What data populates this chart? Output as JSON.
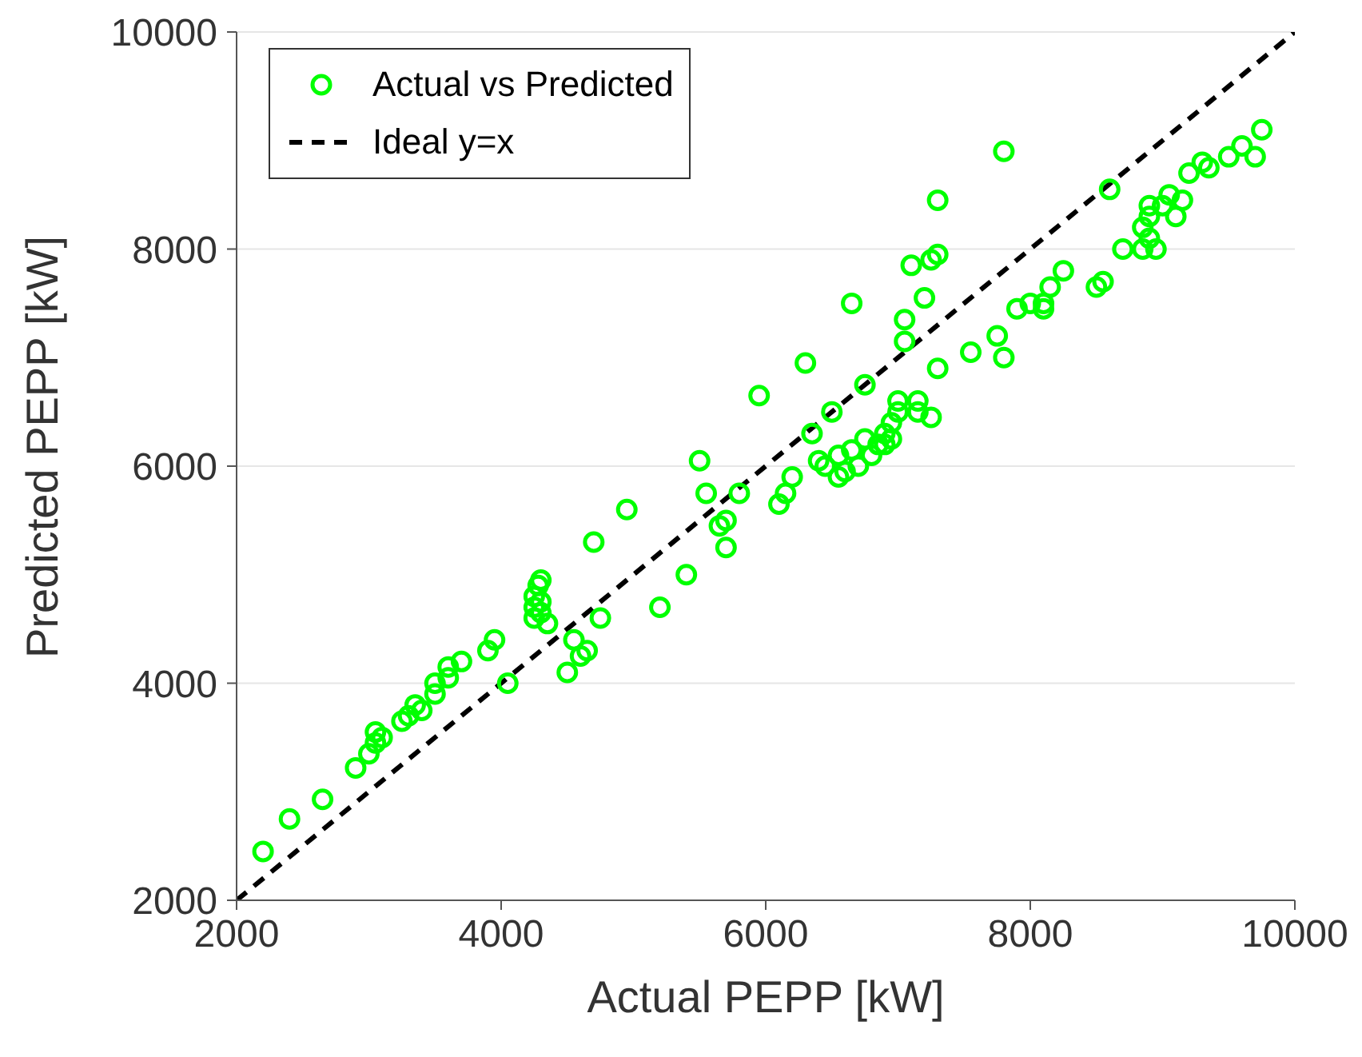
{
  "chart_data": {
    "type": "scatter",
    "xlabel": "Actual PEPP [kW]",
    "ylabel": "Predicted PEPP [kW]",
    "xlim": [
      2000,
      10000
    ],
    "ylim": [
      2000,
      10000
    ],
    "xticks": [
      2000,
      4000,
      6000,
      8000,
      10000
    ],
    "yticks": [
      2000,
      4000,
      6000,
      8000,
      10000
    ],
    "grid": "y",
    "legend": "top left",
    "series": [
      {
        "name": "Actual vs Predicted",
        "type": "scatter",
        "color": "#00ff00",
        "marker": "circle",
        "x": [
          2200,
          2400,
          2650,
          2900,
          3000,
          3050,
          3050,
          3100,
          3250,
          3300,
          3350,
          3400,
          3500,
          3500,
          3600,
          3600,
          3700,
          3900,
          3950,
          4050,
          4250,
          4250,
          4250,
          4280,
          4300,
          4300,
          4350,
          4300,
          4500,
          4550,
          4600,
          4650,
          4700,
          4750,
          4950,
          5200,
          5400,
          5500,
          5550,
          5650,
          5700,
          5700,
          5800,
          5950,
          6100,
          6150,
          6200,
          6300,
          6350,
          6400,
          6450,
          6500,
          6550,
          6550,
          6600,
          6650,
          6650,
          6700,
          6750,
          6750,
          6800,
          6850,
          6900,
          6950,
          7000,
          7000,
          7050,
          7050,
          7100,
          7150,
          7200,
          7250,
          7250,
          7300,
          7300,
          7300,
          7550,
          7750,
          7800,
          7800,
          7900,
          8000,
          8100,
          8100,
          8150,
          8250,
          8500,
          8550,
          8600,
          8700,
          8850,
          8850,
          8900,
          8900,
          8950,
          9000,
          9050,
          9100,
          9150,
          9200,
          9300,
          9350,
          9500,
          9600,
          9700,
          9750,
          8900,
          6900,
          6950,
          7150
        ],
        "values": [
          2450,
          2750,
          2930,
          3220,
          3350,
          3450,
          3550,
          3500,
          3650,
          3700,
          3800,
          3750,
          3900,
          4000,
          4050,
          4150,
          4200,
          4300,
          4400,
          4000,
          4600,
          4700,
          4800,
          4900,
          4950,
          4650,
          4550,
          4750,
          4100,
          4400,
          4250,
          4300,
          5300,
          4600,
          5600,
          4700,
          5000,
          6050,
          5750,
          5450,
          5500,
          5250,
          5750,
          6650,
          5650,
          5750,
          5900,
          6950,
          6300,
          6050,
          6000,
          6500,
          6100,
          5900,
          5950,
          7500,
          6150,
          6000,
          6750,
          6250,
          6100,
          6200,
          6300,
          6400,
          6600,
          6500,
          7150,
          7350,
          7850,
          6600,
          7550,
          6450,
          7900,
          7950,
          6900,
          8450,
          7050,
          7200,
          7000,
          8900,
          7450,
          7500,
          7500,
          7450,
          7650,
          7800,
          7650,
          7700,
          8550,
          8000,
          8000,
          8200,
          8300,
          8100,
          8000,
          8400,
          8500,
          8300,
          8450,
          8700,
          8800,
          8750,
          8850,
          8950,
          8850,
          9100,
          8400,
          6200,
          6250,
          6500
        ]
      },
      {
        "name": "Ideal y=x",
        "type": "line",
        "color": "#000000",
        "line_style": "dashed",
        "x": [
          2000,
          10000
        ],
        "values": [
          2000,
          10000
        ]
      }
    ]
  }
}
